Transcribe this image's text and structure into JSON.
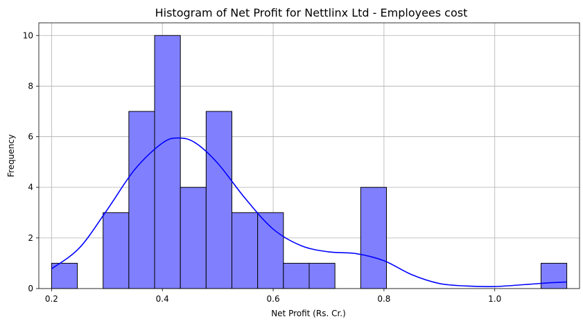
{
  "chart_data": {
    "type": "histogram",
    "title": "Histogram of Net Profit for Nettlinx Ltd - Employees cost",
    "xlabel": "Net Profit (Rs. Cr.)",
    "ylabel": "Frequency",
    "xlim": [
      0.177,
      1.153
    ],
    "ylim": [
      0,
      10.5
    ],
    "x_ticks": [
      {
        "value": 0.2,
        "label": "0.2"
      },
      {
        "value": 0.4,
        "label": "0.4"
      },
      {
        "value": 0.6,
        "label": "0.6"
      },
      {
        "value": 0.8,
        "label": "0.8"
      },
      {
        "value": 1.0,
        "label": "1.0"
      }
    ],
    "y_ticks": [
      {
        "value": 0,
        "label": "0"
      },
      {
        "value": 2,
        "label": "2"
      },
      {
        "value": 4,
        "label": "4"
      },
      {
        "value": 6,
        "label": "6"
      },
      {
        "value": 8,
        "label": "8"
      },
      {
        "value": 10,
        "label": "10"
      }
    ],
    "grid": true,
    "bin_edges": [
      0.2,
      0.2465,
      0.293,
      0.3395,
      0.386,
      0.4325,
      0.479,
      0.5255,
      0.572,
      0.6185,
      0.665,
      0.7115,
      0.758,
      0.8045,
      0.851,
      0.8975,
      0.944,
      0.9905,
      1.037,
      1.0835,
      1.13
    ],
    "counts": [
      1,
      0,
      3,
      7,
      10,
      4,
      7,
      3,
      3,
      1,
      1,
      0,
      4,
      0,
      0,
      0,
      0,
      0,
      0,
      1
    ],
    "kde": {
      "x": [
        0.2,
        0.25,
        0.3,
        0.35,
        0.4,
        0.43,
        0.46,
        0.5,
        0.55,
        0.6,
        0.65,
        0.7,
        0.75,
        0.8,
        0.85,
        0.9,
        0.95,
        1.0,
        1.05,
        1.1,
        1.13
      ],
      "y": [
        0.78,
        1.6,
        3.1,
        4.7,
        5.75,
        5.95,
        5.75,
        4.95,
        3.55,
        2.35,
        1.7,
        1.45,
        1.38,
        1.1,
        0.55,
        0.2,
        0.1,
        0.08,
        0.15,
        0.23,
        0.26
      ]
    },
    "colors": {
      "bar_fill": "#8080ff",
      "bar_edge": "#000000",
      "kde_line": "#0000ff",
      "grid": "#b0b0b0"
    }
  }
}
